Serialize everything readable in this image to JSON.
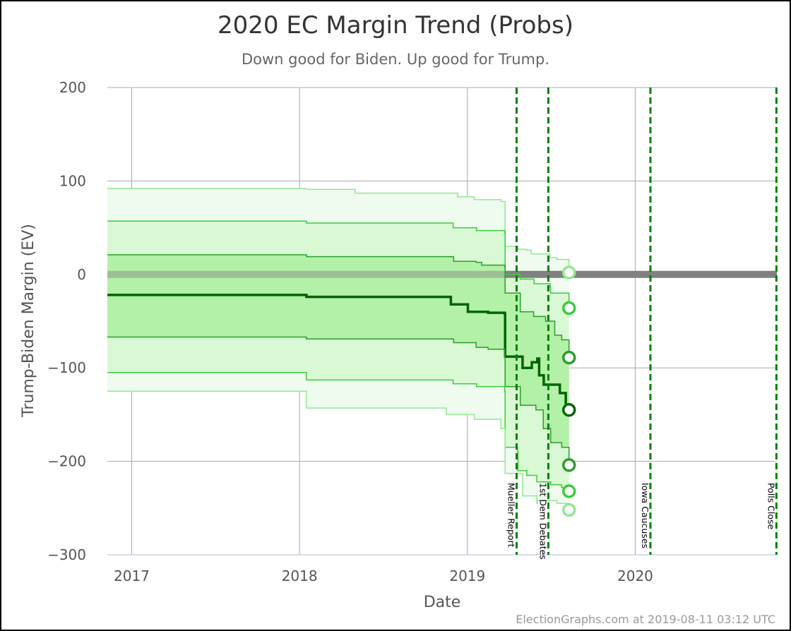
{
  "chart_data": {
    "type": "line",
    "title": "2020 EC Margin Trend (Probs)",
    "subtitle": "Down good for Biden. Up good for Trump.",
    "xlabel": "Date",
    "ylabel": "Trump-Biden Margin (EV)",
    "credit": "ElectionGraphs.com at 2019-08-11 03:12 UTC",
    "xlim": [
      "2016-11-09",
      "2020-11-04"
    ],
    "ylim": [
      -300,
      200
    ],
    "x_ticks": [
      {
        "date": "2017-01-01",
        "label": "2017"
      },
      {
        "date": "2018-01-01",
        "label": "2018"
      },
      {
        "date": "2019-01-01",
        "label": "2019"
      },
      {
        "date": "2020-01-01",
        "label": "2020"
      }
    ],
    "y_ticks": [
      {
        "value": 200,
        "label": "200"
      },
      {
        "value": 100,
        "label": "100"
      },
      {
        "value": 0,
        "label": "0"
      },
      {
        "value": -100,
        "label": "−100"
      },
      {
        "value": -200,
        "label": "−200"
      },
      {
        "value": -300,
        "label": "−300"
      }
    ],
    "grid": true,
    "zero_line": {
      "start": "2019-03-24",
      "end": "2020-11-04",
      "value": 0
    },
    "events": [
      {
        "date": "2019-04-18",
        "label": "Mueller Report"
      },
      {
        "date": "2019-06-26",
        "label": "1st Dem Debates"
      },
      {
        "date": "2020-02-03",
        "label": "Iowa Caucuses"
      },
      {
        "date": "2020-11-03",
        "label": "Polls Close"
      }
    ],
    "colors": {
      "outer_band": "#f0fbf0",
      "middle_band": "#d9f8d4",
      "inner_band": "#b3f0a8",
      "outer_line": "#90e890",
      "middle_line": "#3ccc3c",
      "inner_line": "#2c9e2c",
      "median_line": "#006400",
      "event_line": "#008000",
      "zero_line": "#808080"
    },
    "series": [
      {
        "key": "p_high_outer",
        "values": [
          [
            "2016-11-09",
            92
          ],
          [
            "2017-12-20",
            92
          ],
          [
            "2018-01-15",
            91
          ],
          [
            "2018-05-01",
            91
          ],
          [
            "2018-05-02",
            87
          ],
          [
            "2018-12-10",
            87
          ],
          [
            "2018-12-11",
            83
          ],
          [
            "2019-01-15",
            83
          ],
          [
            "2019-01-16",
            80
          ],
          [
            "2019-03-15",
            78
          ],
          [
            "2019-03-24",
            30
          ],
          [
            "2019-04-20",
            30
          ],
          [
            "2019-04-21",
            27
          ],
          [
            "2019-05-10",
            26
          ],
          [
            "2019-05-20",
            22
          ],
          [
            "2019-06-30",
            18
          ],
          [
            "2019-07-15",
            16
          ],
          [
            "2019-08-10",
            2
          ]
        ]
      },
      {
        "key": "p_high_middle",
        "values": [
          [
            "2016-11-09",
            57
          ],
          [
            "2018-01-15",
            57
          ],
          [
            "2018-01-16",
            55
          ],
          [
            "2018-11-30",
            55
          ],
          [
            "2018-12-01",
            50
          ],
          [
            "2019-01-20",
            50
          ],
          [
            "2019-01-21",
            47
          ],
          [
            "2019-03-23",
            45
          ],
          [
            "2019-03-24",
            0
          ],
          [
            "2019-04-25",
            0
          ],
          [
            "2019-04-26",
            -5
          ],
          [
            "2019-05-25",
            -5
          ],
          [
            "2019-05-26",
            -10
          ],
          [
            "2019-06-30",
            -14
          ],
          [
            "2019-07-01",
            -20
          ],
          [
            "2019-08-10",
            -36
          ]
        ]
      },
      {
        "key": "p_high_inner",
        "values": [
          [
            "2016-11-09",
            21
          ],
          [
            "2018-01-15",
            21
          ],
          [
            "2018-01-16",
            19
          ],
          [
            "2018-12-01",
            19
          ],
          [
            "2018-12-02",
            14
          ],
          [
            "2019-01-20",
            13
          ],
          [
            "2019-02-01",
            10
          ],
          [
            "2019-03-23",
            8
          ],
          [
            "2019-03-24",
            -20
          ],
          [
            "2019-04-25",
            -20
          ],
          [
            "2019-04-26",
            -40
          ],
          [
            "2019-05-25",
            -45
          ],
          [
            "2019-06-20",
            -50
          ],
          [
            "2019-07-10",
            -65
          ],
          [
            "2019-07-25",
            -70
          ],
          [
            "2019-08-10",
            -89
          ]
        ]
      },
      {
        "key": "median",
        "values": [
          [
            "2016-11-09",
            -22
          ],
          [
            "2018-01-15",
            -22
          ],
          [
            "2018-01-16",
            -24
          ],
          [
            "2018-11-25",
            -24
          ],
          [
            "2018-11-26",
            -32
          ],
          [
            "2019-01-01",
            -32
          ],
          [
            "2019-01-02",
            -40
          ],
          [
            "2019-02-15",
            -41
          ],
          [
            "2019-03-23",
            -42
          ],
          [
            "2019-03-24",
            -88
          ],
          [
            "2019-04-30",
            -88
          ],
          [
            "2019-05-01",
            -100
          ],
          [
            "2019-05-20",
            -100
          ],
          [
            "2019-05-21",
            -94
          ],
          [
            "2019-06-01",
            -94
          ],
          [
            "2019-06-02",
            -90
          ],
          [
            "2019-06-05",
            -90
          ],
          [
            "2019-06-06",
            -108
          ],
          [
            "2019-06-15",
            -108
          ],
          [
            "2019-06-16",
            -118
          ],
          [
            "2019-07-20",
            -118
          ],
          [
            "2019-07-21",
            -127
          ],
          [
            "2019-08-02",
            -127
          ],
          [
            "2019-08-03",
            -145
          ],
          [
            "2019-08-10",
            -145
          ]
        ]
      },
      {
        "key": "p_low_inner",
        "values": [
          [
            "2016-11-09",
            -67
          ],
          [
            "2018-01-15",
            -67
          ],
          [
            "2018-01-16",
            -69
          ],
          [
            "2018-12-01",
            -69
          ],
          [
            "2018-12-02",
            -73
          ],
          [
            "2019-01-20",
            -78
          ],
          [
            "2019-02-15",
            -80
          ],
          [
            "2019-03-23",
            -88
          ],
          [
            "2019-03-24",
            -120
          ],
          [
            "2019-04-25",
            -120
          ],
          [
            "2019-04-26",
            -140
          ],
          [
            "2019-05-30",
            -145
          ],
          [
            "2019-06-15",
            -165
          ],
          [
            "2019-07-01",
            -180
          ],
          [
            "2019-07-25",
            -185
          ],
          [
            "2019-08-10",
            -204
          ]
        ]
      },
      {
        "key": "p_low_middle",
        "values": [
          [
            "2016-11-09",
            -105
          ],
          [
            "2018-01-15",
            -105
          ],
          [
            "2018-01-16",
            -113
          ],
          [
            "2018-11-30",
            -113
          ],
          [
            "2018-12-01",
            -117
          ],
          [
            "2019-01-20",
            -117
          ],
          [
            "2019-01-21",
            -120
          ],
          [
            "2019-03-23",
            -125
          ],
          [
            "2019-03-24",
            -185
          ],
          [
            "2019-04-20",
            -190
          ],
          [
            "2019-04-21",
            -210
          ],
          [
            "2019-05-10",
            -215
          ],
          [
            "2019-06-01",
            -222
          ],
          [
            "2019-07-01",
            -225
          ],
          [
            "2019-07-25",
            -228
          ],
          [
            "2019-08-10",
            -232
          ]
        ]
      },
      {
        "key": "p_low_outer",
        "values": [
          [
            "2016-11-09",
            -125
          ],
          [
            "2018-01-15",
            -125
          ],
          [
            "2018-01-16",
            -143
          ],
          [
            "2018-11-15",
            -143
          ],
          [
            "2018-11-16",
            -150
          ],
          [
            "2019-01-15",
            -150
          ],
          [
            "2019-01-16",
            -155
          ],
          [
            "2019-03-15",
            -165
          ],
          [
            "2019-03-24",
            -213
          ],
          [
            "2019-04-30",
            -213
          ],
          [
            "2019-05-01",
            -237
          ],
          [
            "2019-06-01",
            -245
          ],
          [
            "2019-06-02",
            -242
          ],
          [
            "2019-07-15",
            -245
          ],
          [
            "2019-08-10",
            -252
          ]
        ]
      }
    ],
    "endpoints": [
      {
        "date": "2019-08-10",
        "value": 2,
        "key": "p_high_outer"
      },
      {
        "date": "2019-08-10",
        "value": -36,
        "key": "p_high_middle"
      },
      {
        "date": "2019-08-10",
        "value": -89,
        "key": "p_high_inner"
      },
      {
        "date": "2019-08-10",
        "value": -145,
        "key": "median"
      },
      {
        "date": "2019-08-10",
        "value": -204,
        "key": "p_low_inner"
      },
      {
        "date": "2019-08-10",
        "value": -232,
        "key": "p_low_middle"
      },
      {
        "date": "2019-08-10",
        "value": -252,
        "key": "p_low_outer"
      }
    ]
  }
}
